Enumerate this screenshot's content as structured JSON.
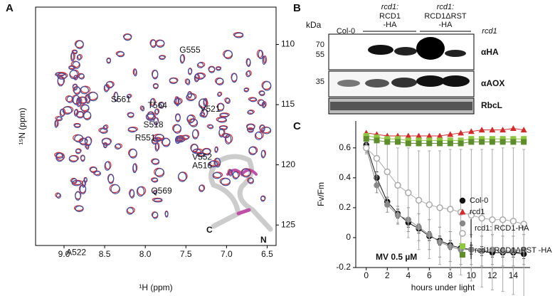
{
  "panel_labels": [
    "A",
    "B",
    "C"
  ],
  "blot": {
    "kda": "kDa",
    "lanes": [
      "Col-0",
      "rcd1:",
      "RCD1",
      "-HA",
      "rcd1:",
      "RCD1ΔRST",
      "-HA",
      "rcd1"
    ],
    "markers": [
      70,
      55,
      35
    ],
    "rows": [
      "αHA",
      "αAOX",
      "RbcL"
    ]
  },
  "chart_data": [
    {
      "type": "nmr",
      "xlabel": "¹H (ppm)",
      "ylabel": "¹⁵N (ppm)",
      "xlim": [
        9.35,
        6.39
      ],
      "ylim": [
        106.9,
        126.7
      ],
      "xticks": [
        {
          "value": 9.0,
          "label": "9.0"
        },
        {
          "value": 8.5,
          "label": "8.5"
        },
        {
          "value": 8.0,
          "label": "8.0"
        },
        {
          "value": 7.5,
          "label": "7.5"
        },
        {
          "value": 7.0,
          "label": "7.0"
        },
        {
          "value": 6.5,
          "label": "6.5"
        }
      ],
      "yticks": [
        110,
        115,
        120,
        125
      ],
      "annotations": [
        {
          "text": "G555",
          "x": 7.45,
          "y": 110.5
        },
        {
          "text": "S561",
          "x": 8.3,
          "y": 114.6
        },
        {
          "text": "T564",
          "x": 7.85,
          "y": 115.1
        },
        {
          "text": "V521",
          "x": 7.2,
          "y": 115.4
        },
        {
          "text": "S518",
          "x": 7.9,
          "y": 116.7
        },
        {
          "text": "R551",
          "x": 8.0,
          "y": 117.8
        },
        {
          "text": "V552",
          "x": 7.3,
          "y": 119.4
        },
        {
          "text": "A516",
          "x": 7.3,
          "y": 120.1
        },
        {
          "text": "Q569",
          "x": 7.8,
          "y": 122.2
        },
        {
          "text": "A522",
          "x": 8.85,
          "y": 127.3
        }
      ],
      "structure_labels": [
        "C",
        "N"
      ]
    },
    {
      "type": "line",
      "xlabel": "hours under light",
      "ylabel": "Fv/Fm",
      "annotation": "MV 0.5 µM",
      "x": [
        0,
        1,
        2,
        3,
        4,
        5,
        6,
        7,
        8,
        9,
        10,
        11,
        12,
        13,
        14,
        15
      ],
      "xlim": [
        -1,
        15.6
      ],
      "ylim": [
        -0.2,
        0.78
      ],
      "xticks": [
        0,
        2,
        4,
        6,
        8,
        10,
        12,
        14
      ],
      "yticks": [
        -0.2,
        0,
        0.2,
        0.4,
        0.6
      ],
      "series": [
        {
          "name": "Col-0",
          "color": "#111111",
          "marker": "circle",
          "values": [
            0.62,
            0.4,
            0.24,
            0.16,
            0.1,
            0.06,
            0.01,
            -0.02,
            -0.05,
            -0.07,
            -0.08,
            -0.09,
            -0.1,
            -0.1,
            -0.1,
            -0.11
          ],
          "errors": [
            0.03,
            0.04,
            0.03,
            0.03,
            0.03,
            0.03,
            0.03,
            0.03,
            0.03,
            0.03,
            0.03,
            0.03,
            0.03,
            0.03,
            0.03,
            0.03
          ]
        },
        {
          "name": "rcd1",
          "color": "#d42a2a",
          "marker": "triangle",
          "values": [
            0.7,
            0.69,
            0.68,
            0.68,
            0.68,
            0.68,
            0.68,
            0.68,
            0.69,
            0.7,
            0.71,
            0.72,
            0.72,
            0.72,
            0.73,
            0.72
          ]
        },
        {
          "name": "rcd1: RCD1-HA",
          "color": "#888888",
          "marker": "circle",
          "values": [
            0.6,
            0.35,
            0.22,
            0.15,
            0.12,
            0.07,
            0.02,
            -0.03,
            -0.06,
            -0.08,
            -0.08,
            -0.09,
            -0.08,
            -0.09,
            -0.09,
            -0.08
          ],
          "errors": [
            0.03,
            0.05,
            0.05,
            0.06,
            0.08,
            0.09,
            0.1,
            0.1,
            0.1,
            0.1,
            0.1,
            0.1,
            0.1,
            0.1,
            0.1,
            0.1
          ]
        },
        {
          "name": "rcd1: RCD1-HA",
          "color": "#aaaaaa",
          "marker": "open",
          "values": [
            0.6,
            0.53,
            0.44,
            0.35,
            0.3,
            0.25,
            0.22,
            0.2,
            0.19,
            0.17,
            0.15,
            0.13,
            0.12,
            0.12,
            0.11,
            0.09
          ],
          "errors": [
            0.04,
            0.12,
            0.2,
            0.25,
            0.3,
            0.33,
            0.36,
            0.38,
            0.4,
            0.42,
            0.44,
            0.46,
            0.47,
            0.48,
            0.49,
            0.5
          ]
        },
        {
          "name": "rcd1: RCD1ΔRST -HA",
          "color": "#8dc63f",
          "marker": "square",
          "values": [
            0.68,
            0.67,
            0.66,
            0.66,
            0.65,
            0.65,
            0.65,
            0.65,
            0.65,
            0.65,
            0.66,
            0.66,
            0.66,
            0.66,
            0.66,
            0.66
          ]
        },
        {
          "name": "rcd1: RCD1ΔRST -HA",
          "color": "#5e8d2b",
          "marker": "square",
          "values": [
            0.66,
            0.65,
            0.64,
            0.64,
            0.63,
            0.63,
            0.63,
            0.63,
            0.63,
            0.63,
            0.64,
            0.64,
            0.64,
            0.64,
            0.64,
            0.64
          ]
        }
      ]
    }
  ]
}
